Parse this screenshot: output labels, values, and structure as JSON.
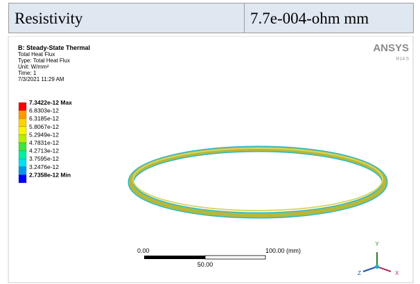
{
  "table": {
    "rows": [
      [
        "Resistivity",
        "7.7e-004-ohm mm"
      ]
    ]
  },
  "figure": {
    "title": "B: Steady-State Thermal",
    "info": [
      "Total Heat Flux",
      "Type: Total Heat Flux",
      "Unit: W/mm²",
      "Time: 1",
      "7/3/2021 11:29 AM"
    ],
    "brand": "ANSYS",
    "version": "R14.5",
    "legend": {
      "labels": [
        "7.3422e-12 Max",
        "6.8303e-12",
        "6.3185e-12",
        "5.8067e-12",
        "5.2949e-12",
        "4.7831e-12",
        "4.2713e-12",
        "3.7595e-12",
        "3.2476e-12",
        "2.7358e-12 Min"
      ],
      "colors": [
        "#ff0000",
        "#ff9900",
        "#ffd200",
        "#f5f500",
        "#b4f000",
        "#3ce63c",
        "#00f0a0",
        "#00e1f0",
        "#0096f0",
        "#0000ff"
      ]
    },
    "scale": {
      "start": "0.00",
      "end": "100.00 (mm)",
      "mid": "50.00"
    },
    "axes": {
      "y": "Y",
      "z": "Z",
      "x": "X"
    }
  }
}
